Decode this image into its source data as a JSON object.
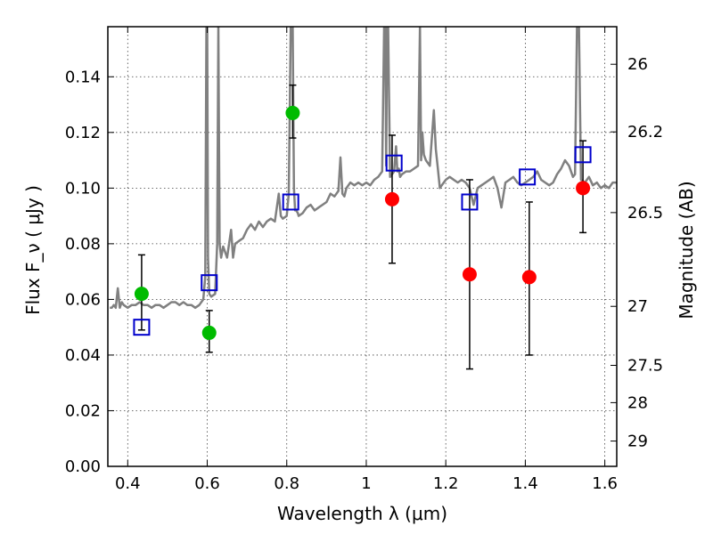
{
  "chart_data": {
    "type": "scatter",
    "xlabel": "Wavelength  λ (μm)",
    "ylabel": "Flux  F_ν  ( μJy )",
    "ylabel_right": "Magnitude (AB)",
    "xlim": [
      0.35,
      1.63
    ],
    "ylim": [
      0,
      0.158
    ],
    "grid": true,
    "x_ticks": [
      "0.4",
      "0.6",
      "0.8",
      "1",
      "1.2",
      "1.4",
      "1.6"
    ],
    "y_ticks": [
      "0.00",
      "0.02",
      "0.04",
      "0.06",
      "0.08",
      "0.10",
      "0.12",
      "0.14"
    ],
    "right_ticks": [
      {
        "label": "26",
        "flux": 0.1445
      },
      {
        "label": "26.2",
        "flux": 0.1202
      },
      {
        "label": "26.5",
        "flux": 0.0912
      },
      {
        "label": "27",
        "flux": 0.0575
      },
      {
        "label": "27.5",
        "flux": 0.0363
      },
      {
        "label": "28",
        "flux": 0.0229
      },
      {
        "label": "29",
        "flux": 0.0091
      }
    ],
    "series": [
      {
        "type": "line",
        "color": "#808080",
        "x": [
          0.355,
          0.36,
          0.365,
          0.37,
          0.375,
          0.38,
          0.385,
          0.39,
          0.4,
          0.41,
          0.42,
          0.43,
          0.44,
          0.45,
          0.46,
          0.47,
          0.48,
          0.49,
          0.5,
          0.51,
          0.52,
          0.53,
          0.54,
          0.55,
          0.56,
          0.57,
          0.58,
          0.59,
          0.595,
          0.598,
          0.6,
          0.602,
          0.605,
          0.61,
          0.62,
          0.625,
          0.628,
          0.631,
          0.635,
          0.64,
          0.65,
          0.66,
          0.665,
          0.67,
          0.68,
          0.69,
          0.7,
          0.71,
          0.72,
          0.73,
          0.74,
          0.75,
          0.76,
          0.77,
          0.78,
          0.785,
          0.79,
          0.8,
          0.805,
          0.81,
          0.815,
          0.818,
          0.821,
          0.824,
          0.828,
          0.83,
          0.84,
          0.85,
          0.86,
          0.87,
          0.88,
          0.89,
          0.9,
          0.91,
          0.92,
          0.93,
          0.935,
          0.94,
          0.945,
          0.95,
          0.96,
          0.97,
          0.98,
          0.99,
          1.0,
          1.01,
          1.02,
          1.03,
          1.04,
          1.045,
          1.048,
          1.05,
          1.052,
          1.055,
          1.06,
          1.07,
          1.075,
          1.078,
          1.082,
          1.085,
          1.09,
          1.1,
          1.11,
          1.12,
          1.13,
          1.135,
          1.138,
          1.141,
          1.145,
          1.15,
          1.16,
          1.17,
          1.175,
          1.18,
          1.185,
          1.19,
          1.2,
          1.21,
          1.22,
          1.23,
          1.24,
          1.25,
          1.26,
          1.27,
          1.28,
          1.29,
          1.3,
          1.31,
          1.32,
          1.33,
          1.34,
          1.35,
          1.36,
          1.37,
          1.38,
          1.39,
          1.4,
          1.41,
          1.42,
          1.43,
          1.44,
          1.45,
          1.46,
          1.47,
          1.48,
          1.49,
          1.5,
          1.51,
          1.52,
          1.525,
          1.53,
          1.535,
          1.54,
          1.55,
          1.56,
          1.57,
          1.58,
          1.59,
          1.6,
          1.61,
          1.62,
          1.63
        ],
        "y": [
          0.057,
          0.057,
          0.058,
          0.057,
          0.064,
          0.057,
          0.059,
          0.058,
          0.057,
          0.058,
          0.058,
          0.059,
          0.058,
          0.058,
          0.057,
          0.058,
          0.058,
          0.057,
          0.058,
          0.059,
          0.059,
          0.058,
          0.059,
          0.058,
          0.058,
          0.057,
          0.058,
          0.06,
          0.068,
          0.158,
          0.158,
          0.075,
          0.062,
          0.061,
          0.062,
          0.08,
          0.158,
          0.08,
          0.075,
          0.079,
          0.075,
          0.085,
          0.075,
          0.08,
          0.081,
          0.082,
          0.085,
          0.087,
          0.085,
          0.088,
          0.086,
          0.088,
          0.089,
          0.088,
          0.098,
          0.09,
          0.089,
          0.09,
          0.098,
          0.158,
          0.158,
          0.1,
          0.092,
          0.092,
          0.091,
          0.09,
          0.091,
          0.093,
          0.094,
          0.092,
          0.093,
          0.094,
          0.095,
          0.098,
          0.097,
          0.099,
          0.111,
          0.098,
          0.097,
          0.1,
          0.102,
          0.101,
          0.102,
          0.101,
          0.102,
          0.101,
          0.103,
          0.104,
          0.106,
          0.158,
          0.158,
          0.108,
          0.158,
          0.158,
          0.104,
          0.106,
          0.115,
          0.106,
          0.107,
          0.104,
          0.105,
          0.106,
          0.106,
          0.107,
          0.108,
          0.158,
          0.11,
          0.12,
          0.112,
          0.11,
          0.108,
          0.128,
          0.114,
          0.107,
          0.1,
          0.101,
          0.103,
          0.104,
          0.103,
          0.102,
          0.103,
          0.102,
          0.1,
          0.094,
          0.1,
          0.101,
          0.102,
          0.103,
          0.104,
          0.1,
          0.093,
          0.102,
          0.103,
          0.104,
          0.102,
          0.101,
          0.102,
          0.103,
          0.104,
          0.106,
          0.103,
          0.102,
          0.101,
          0.102,
          0.105,
          0.107,
          0.11,
          0.108,
          0.104,
          0.105,
          0.158,
          0.158,
          0.103,
          0.102,
          0.104,
          0.101,
          0.102,
          0.1,
          0.101,
          0.1,
          0.102,
          0.102
        ]
      },
      {
        "type": "markers",
        "marker": "circle",
        "color": "#00bb00",
        "x": [
          0.435,
          0.605,
          0.815
        ],
        "y": [
          0.062,
          0.048,
          0.127
        ],
        "yerr_low": [
          0.049,
          0.041,
          0.118
        ],
        "yerr_high": [
          0.076,
          0.056,
          0.137
        ]
      },
      {
        "type": "markers",
        "marker": "circle",
        "color": "#ff0000",
        "x": [
          1.065,
          1.26,
          1.41,
          1.545
        ],
        "y": [
          0.096,
          0.069,
          0.068,
          0.1
        ],
        "yerr_low": [
          0.073,
          0.035,
          0.04,
          0.084
        ],
        "yerr_high": [
          0.119,
          0.103,
          0.095,
          0.117
        ]
      },
      {
        "type": "markers",
        "marker": "square-open",
        "color": "#0000cc",
        "x": [
          0.435,
          0.605,
          0.81,
          1.07,
          1.26,
          1.405,
          1.545
        ],
        "y": [
          0.05,
          0.066,
          0.095,
          0.109,
          0.095,
          0.104,
          0.112
        ]
      }
    ]
  }
}
